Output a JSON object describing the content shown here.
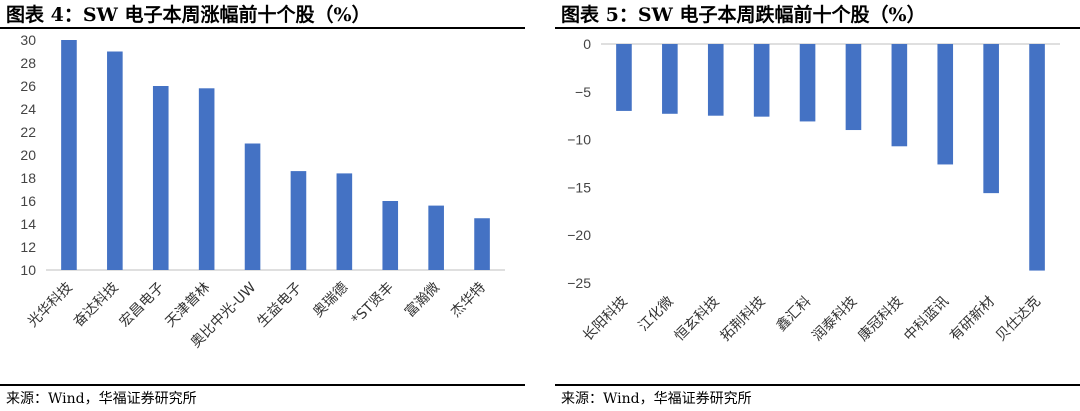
{
  "charts": [
    {
      "title": "图表 4：SW 电子本周涨幅前十个股（%）",
      "source": "来源：Wind，华福证券研究所",
      "chart_data": {
        "type": "bar",
        "title": "图表 4：SW 电子本周涨幅前十个股（%）",
        "categories": [
          "光华科技",
          "奋达科技",
          "宏昌电子",
          "天津普林",
          "奥比中光-UW",
          "生益电子",
          "奥瑞德",
          "*ST贤丰",
          "富瀚微",
          "杰华特"
        ],
        "values": [
          30.0,
          29.0,
          26.0,
          25.8,
          21.0,
          18.6,
          18.4,
          16.0,
          15.6,
          14.5
        ],
        "ylim": [
          10,
          30
        ],
        "yticks": [
          10,
          12,
          14,
          16,
          18,
          20,
          22,
          24,
          26,
          28,
          30
        ],
        "xlabel": "",
        "ylabel": "",
        "grid": false,
        "bar_color": "#4472C4"
      }
    },
    {
      "title": "图表 5：SW 电子本周跌幅前十个股（%）",
      "source": "来源：Wind，华福证券研究所",
      "chart_data": {
        "type": "bar",
        "title": "图表 5：SW 电子本周跌幅前十个股（%）",
        "categories": [
          "长阳科技",
          "江化微",
          "恒玄科技",
          "拓荆科技",
          "鑫汇科",
          "润泰科技",
          "康冠科技",
          "中科蓝讯",
          "有研新材",
          "贝仕达克"
        ],
        "values": [
          -7.0,
          -7.3,
          -7.5,
          -7.6,
          -8.1,
          -9.0,
          -10.7,
          -12.6,
          -15.6,
          -23.7
        ],
        "ylim": [
          -25,
          0
        ],
        "yticks": [
          0,
          -5,
          -10,
          -15,
          -20,
          -25
        ],
        "xlabel": "",
        "ylabel": "",
        "grid": false,
        "bar_color": "#4472C4"
      }
    }
  ]
}
